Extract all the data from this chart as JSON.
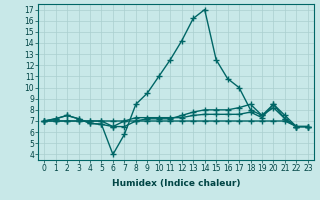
{
  "xlabel": "Humidex (Indice chaleur)",
  "background_color": "#c8e8e8",
  "line_color": "#006666",
  "xlim": [
    -0.5,
    23.5
  ],
  "ylim": [
    3.5,
    17.5
  ],
  "xticks": [
    0,
    1,
    2,
    3,
    4,
    5,
    6,
    7,
    8,
    9,
    10,
    11,
    12,
    13,
    14,
    15,
    16,
    17,
    18,
    19,
    20,
    21,
    22,
    23
  ],
  "yticks": [
    4,
    5,
    6,
    7,
    8,
    9,
    10,
    11,
    12,
    13,
    14,
    15,
    16,
    17
  ],
  "series": [
    [
      7.0,
      7.2,
      7.5,
      7.2,
      6.8,
      6.7,
      4.0,
      5.8,
      8.5,
      9.5,
      11.0,
      12.5,
      14.2,
      16.2,
      17.0,
      12.5,
      10.8,
      10.0,
      8.0,
      7.5,
      8.2,
      7.2,
      6.5,
      6.5
    ],
    [
      7.0,
      7.2,
      7.5,
      7.2,
      6.8,
      6.7,
      6.5,
      7.0,
      7.3,
      7.3,
      7.3,
      7.3,
      7.3,
      7.5,
      7.6,
      7.6,
      7.6,
      7.6,
      7.8,
      7.3,
      8.5,
      7.2,
      6.5,
      6.5
    ],
    [
      7.0,
      7.0,
      7.0,
      7.0,
      7.0,
      7.0,
      7.0,
      7.0,
      7.0,
      7.0,
      7.0,
      7.0,
      7.0,
      7.0,
      7.0,
      7.0,
      7.0,
      7.0,
      7.0,
      7.0,
      7.0,
      7.0,
      6.5,
      6.5
    ],
    [
      7.0,
      7.0,
      7.0,
      7.0,
      7.0,
      7.0,
      6.5,
      6.5,
      7.0,
      7.2,
      7.2,
      7.2,
      7.5,
      7.8,
      8.0,
      8.0,
      8.0,
      8.2,
      8.5,
      7.5,
      8.5,
      7.5,
      6.5,
      6.5
    ]
  ],
  "grid_color": "#aacfcf",
  "marker": "+",
  "markersize": 4,
  "linewidth": 1.0,
  "tick_fontsize": 5.5,
  "xlabel_fontsize": 6.5
}
